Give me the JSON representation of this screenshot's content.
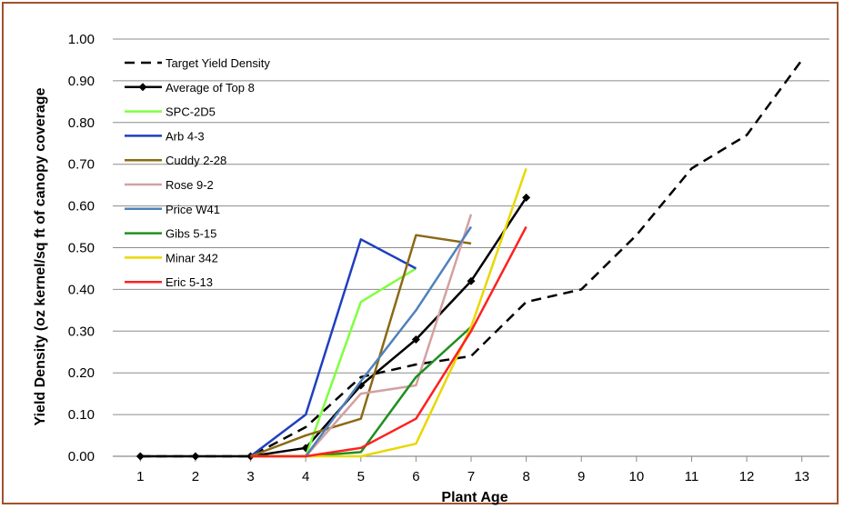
{
  "chart_data": {
    "type": "line",
    "title": "",
    "xlabel": "Plant Age",
    "ylabel": "Yield Density (oz kernel/sq ft of canopy coverage",
    "x_ticks": [
      1,
      2,
      3,
      4,
      5,
      6,
      7,
      8,
      9,
      10,
      11,
      12,
      13
    ],
    "y_ticks": [
      "0.00",
      "0.10",
      "0.20",
      "0.30",
      "0.40",
      "0.50",
      "0.60",
      "0.70",
      "0.80",
      "0.90",
      "1.00"
    ],
    "xlim": [
      0.5,
      13.5
    ],
    "ylim": [
      0,
      1.0
    ],
    "grid": "horizontal",
    "legend_position": "top-left",
    "series": [
      {
        "name": "Target Yield Density",
        "color": "#000000",
        "style": "dashed",
        "x": [
          1,
          2,
          3,
          4,
          5,
          6,
          7,
          8,
          9,
          10,
          11,
          12,
          13
        ],
        "y": [
          0,
          0,
          0,
          0.07,
          0.19,
          0.22,
          0.24,
          0.37,
          0.4,
          0.53,
          0.69,
          0.77,
          0.95
        ]
      },
      {
        "name": "Average of Top 8",
        "color": "#000000",
        "style": "solid-diamond",
        "x": [
          1,
          2,
          3,
          4,
          5,
          6,
          7,
          8
        ],
        "y": [
          0,
          0,
          0,
          0.02,
          0.17,
          0.28,
          0.42,
          0.62
        ]
      },
      {
        "name": "SPC-2D5",
        "color": "#7fff3f",
        "style": "solid",
        "x": [
          3,
          4,
          5,
          6
        ],
        "y": [
          0,
          0,
          0.37,
          0.45
        ]
      },
      {
        "name": "Arb 4-3",
        "color": "#1f3fbf",
        "style": "solid",
        "x": [
          3,
          4,
          5,
          6
        ],
        "y": [
          0,
          0.1,
          0.52,
          0.45
        ]
      },
      {
        "name": "Cuddy 2-28",
        "color": "#8b6914",
        "style": "solid",
        "x": [
          3,
          4,
          5,
          6,
          7
        ],
        "y": [
          0,
          0.05,
          0.09,
          0.53,
          0.51
        ]
      },
      {
        "name": "Rose 9-2",
        "color": "#d4a0a0",
        "style": "solid",
        "x": [
          3,
          4,
          5,
          6,
          7
        ],
        "y": [
          0,
          0,
          0.15,
          0.17,
          0.58
        ]
      },
      {
        "name": "Price W41",
        "color": "#4f81bd",
        "style": "solid",
        "x": [
          3,
          4,
          5,
          6,
          7
        ],
        "y": [
          0,
          0,
          0.18,
          0.35,
          0.55
        ]
      },
      {
        "name": "Gibs 5-15",
        "color": "#1f8f1f",
        "style": "solid",
        "x": [
          3,
          4,
          5,
          6,
          7
        ],
        "y": [
          0,
          0,
          0.01,
          0.19,
          0.31
        ]
      },
      {
        "name": "Minar 342",
        "color": "#e8d800",
        "style": "solid",
        "x": [
          3,
          4,
          5,
          6,
          7,
          8
        ],
        "y": [
          0,
          0,
          0,
          0.03,
          0.31,
          0.69
        ]
      },
      {
        "name": "Eric 5-13",
        "color": "#ff2020",
        "style": "solid",
        "x": [
          3,
          4,
          5,
          6,
          7,
          8
        ],
        "y": [
          0,
          0,
          0.02,
          0.09,
          0.3,
          0.55
        ]
      }
    ]
  }
}
